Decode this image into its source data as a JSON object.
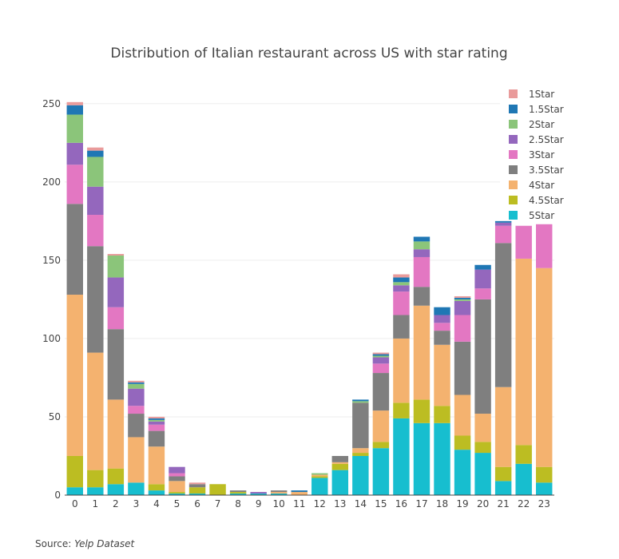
{
  "chart_data": {
    "type": "bar",
    "stacked": true,
    "title": "Distribution of Italian restaurant across US with star rating",
    "xlabel": "",
    "ylabel": "",
    "ylim": [
      0,
      255
    ],
    "yticks": [
      0,
      50,
      100,
      150,
      200,
      250
    ],
    "grid": true,
    "legend_position": "top-right",
    "categories": [
      "0",
      "1",
      "2",
      "3",
      "4",
      "5",
      "6",
      "7",
      "8",
      "9",
      "10",
      "11",
      "12",
      "13",
      "14",
      "15",
      "16",
      "17",
      "18",
      "19",
      "20",
      "21",
      "22",
      "23"
    ],
    "series": [
      {
        "name": "5Star",
        "color": "#17becf",
        "values": [
          5,
          5,
          7,
          8,
          3,
          1,
          1,
          0,
          1,
          1,
          1,
          0,
          11,
          16,
          25,
          30,
          49,
          46,
          46,
          29,
          27,
          9,
          20,
          8
        ]
      },
      {
        "name": "4.5Star",
        "color": "#bcbd22",
        "values": [
          20,
          11,
          10,
          0,
          4,
          1,
          4,
          7,
          1,
          0,
          0,
          0,
          1,
          4,
          2,
          4,
          10,
          15,
          11,
          9,
          7,
          9,
          12,
          10
        ]
      },
      {
        "name": "4Star",
        "color": "#f4b26f",
        "values": [
          103,
          75,
          44,
          29,
          24,
          7,
          0,
          0,
          0,
          0,
          1,
          2,
          1,
          1,
          3,
          20,
          41,
          60,
          39,
          26,
          18,
          51,
          119,
          127
        ]
      },
      {
        "name": "3.5Star",
        "color": "#7f7f7f",
        "values": [
          58,
          68,
          45,
          15,
          10,
          3,
          2,
          0,
          1,
          0,
          1,
          0,
          0,
          4,
          29,
          24,
          15,
          12,
          9,
          34,
          73,
          92,
          0,
          0
        ]
      },
      {
        "name": "3Star",
        "color": "#e377c2",
        "values": [
          25,
          20,
          14,
          5,
          4,
          2,
          0,
          0,
          0,
          0,
          0,
          0,
          0,
          0,
          0,
          6,
          15,
          19,
          5,
          17,
          7,
          11,
          21,
          28
        ]
      },
      {
        "name": "2.5Star",
        "color": "#9467bd",
        "values": [
          14,
          18,
          19,
          11,
          2,
          4,
          0,
          0,
          0,
          1,
          0,
          0,
          0,
          0,
          0,
          4,
          4,
          5,
          5,
          9,
          12,
          2,
          0,
          0
        ]
      },
      {
        "name": "2Star",
        "color": "#8bc57a",
        "values": [
          18,
          19,
          14,
          3,
          1,
          0,
          0,
          0,
          0,
          0,
          0,
          0,
          1,
          0,
          1,
          1,
          2,
          5,
          0,
          1,
          0,
          0,
          0,
          0
        ]
      },
      {
        "name": "1.5Star",
        "color": "#1f77b4",
        "values": [
          6,
          4,
          0,
          1,
          1,
          0,
          0,
          0,
          0,
          0,
          0,
          1,
          0,
          0,
          1,
          1,
          3,
          3,
          5,
          1,
          3,
          1,
          0,
          0
        ]
      },
      {
        "name": "1Star",
        "color": "#e99b9b",
        "values": [
          2,
          2,
          1,
          1,
          1,
          0,
          1,
          0,
          0,
          0,
          0,
          0,
          0,
          0,
          0,
          1,
          2,
          0,
          0,
          1,
          0,
          0,
          0,
          0
        ]
      }
    ]
  },
  "source": {
    "prefix": "Source: ",
    "name": "Yelp Dataset"
  }
}
